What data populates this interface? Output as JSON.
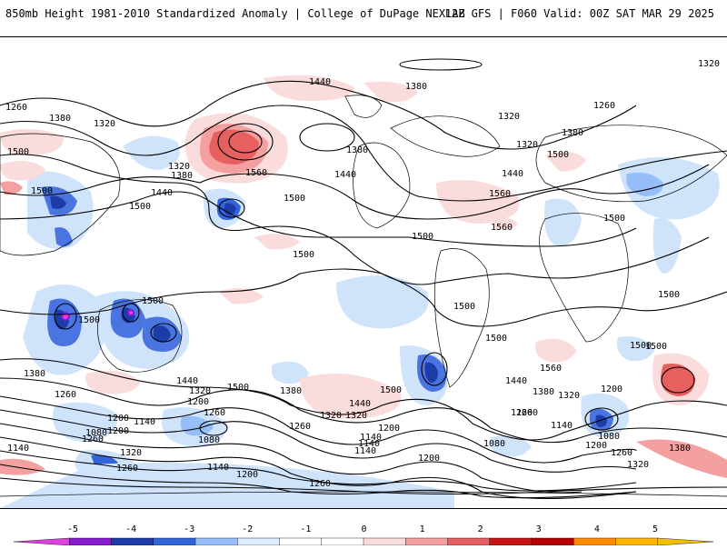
{
  "header": {
    "title": "850mb Height 1981-2010 Standardized Anomaly | College of DuPage NEXLAB",
    "run": "12Z GFS | F060 Valid: 00Z SAT MAR 29 2025"
  },
  "map": {
    "projection": "global cylindrical",
    "contour_labels": [
      {
        "id": "c01",
        "text": "1440"
      },
      {
        "id": "c02",
        "text": "1380"
      },
      {
        "id": "c03",
        "text": "1320"
      },
      {
        "id": "c04",
        "text": "1260"
      },
      {
        "id": "c05",
        "text": "1380"
      },
      {
        "id": "c06",
        "text": "1320"
      },
      {
        "id": "c07",
        "text": "1320"
      },
      {
        "id": "c08",
        "text": "1380"
      },
      {
        "id": "c09",
        "text": "1500"
      },
      {
        "id": "c10",
        "text": "1440"
      },
      {
        "id": "c11",
        "text": "1500"
      },
      {
        "id": "c12",
        "text": "1560"
      },
      {
        "id": "c13",
        "text": "1500"
      },
      {
        "id": "c14",
        "text": "1380"
      },
      {
        "id": "c15",
        "text": "1440"
      },
      {
        "id": "c16",
        "text": "1320"
      },
      {
        "id": "c17",
        "text": "1320"
      },
      {
        "id": "c18",
        "text": "1260"
      },
      {
        "id": "c19",
        "text": "1380"
      },
      {
        "id": "c20",
        "text": "1500"
      },
      {
        "id": "c21",
        "text": "1440"
      },
      {
        "id": "c22",
        "text": "1560"
      },
      {
        "id": "c23",
        "text": "1560"
      },
      {
        "id": "c24",
        "text": "1500"
      },
      {
        "id": "c25",
        "text": "1500"
      },
      {
        "id": "c26",
        "text": "1500"
      },
      {
        "id": "c27",
        "text": "1500"
      },
      {
        "id": "c28",
        "text": "1500"
      },
      {
        "id": "c29",
        "text": "1500"
      },
      {
        "id": "c30",
        "text": "1500"
      },
      {
        "id": "c31",
        "text": "1500"
      },
      {
        "id": "c32",
        "text": "1500"
      },
      {
        "id": "c33",
        "text": "1380"
      },
      {
        "id": "c34",
        "text": "1440"
      },
      {
        "id": "c35",
        "text": "1500"
      },
      {
        "id": "c36",
        "text": "1380"
      },
      {
        "id": "c37",
        "text": "1320"
      },
      {
        "id": "c38",
        "text": "1260"
      },
      {
        "id": "c39",
        "text": "1200"
      },
      {
        "id": "c40",
        "text": "1140"
      },
      {
        "id": "c41",
        "text": "1080"
      },
      {
        "id": "c42",
        "text": "1200"
      },
      {
        "id": "c43",
        "text": "1260"
      },
      {
        "id": "c44",
        "text": "1140"
      },
      {
        "id": "c45",
        "text": "1320"
      },
      {
        "id": "c46",
        "text": "1260"
      },
      {
        "id": "c47",
        "text": "1080"
      },
      {
        "id": "c48",
        "text": "1140"
      },
      {
        "id": "c49",
        "text": "1200"
      },
      {
        "id": "c50",
        "text": "1260"
      },
      {
        "id": "c51",
        "text": "1440"
      },
      {
        "id": "c52",
        "text": "1500"
      },
      {
        "id": "c53",
        "text": "1320"
      },
      {
        "id": "c54",
        "text": "1200"
      },
      {
        "id": "c55",
        "text": "1140"
      },
      {
        "id": "c56",
        "text": "1140"
      },
      {
        "id": "c57",
        "text": "1200"
      },
      {
        "id": "c58",
        "text": "1260"
      },
      {
        "id": "c59",
        "text": "1380"
      },
      {
        "id": "c60",
        "text": "1440"
      },
      {
        "id": "c61",
        "text": "1560"
      },
      {
        "id": "c62",
        "text": "1080"
      },
      {
        "id": "c63",
        "text": "1200"
      },
      {
        "id": "c64",
        "text": "1140"
      },
      {
        "id": "c65",
        "text": "1260"
      },
      {
        "id": "c66",
        "text": "1200"
      },
      {
        "id": "c67",
        "text": "1080"
      },
      {
        "id": "c68",
        "text": "1320"
      },
      {
        "id": "c69",
        "text": "1380"
      },
      {
        "id": "c70",
        "text": "1320"
      },
      {
        "id": "c71",
        "text": "1500"
      },
      {
        "id": "c72",
        "text": "1500"
      },
      {
        "id": "c73",
        "text": "1260"
      },
      {
        "id": "c74",
        "text": "1140"
      },
      {
        "id": "c75",
        "text": "1320"
      },
      {
        "id": "c76",
        "text": "1200"
      },
      {
        "id": "c77",
        "text": "1260"
      },
      {
        "id": "c78",
        "text": "1260"
      }
    ]
  },
  "colorbar": {
    "ticks": [
      "-5",
      "-4",
      "-3",
      "-2",
      "-1",
      "0",
      "1",
      "2",
      "3",
      "4",
      "5"
    ],
    "colors": [
      "#e040e0",
      "#8a1ad0",
      "#1e3ca8",
      "#3264dc",
      "#96befa",
      "#dcecff",
      "#ffffff",
      "#ffffff",
      "#fadcdc",
      "#f5a0a0",
      "#e66060",
      "#c81414",
      "#b40000",
      "#ff8c00",
      "#ffb400",
      "#f0c000"
    ]
  }
}
